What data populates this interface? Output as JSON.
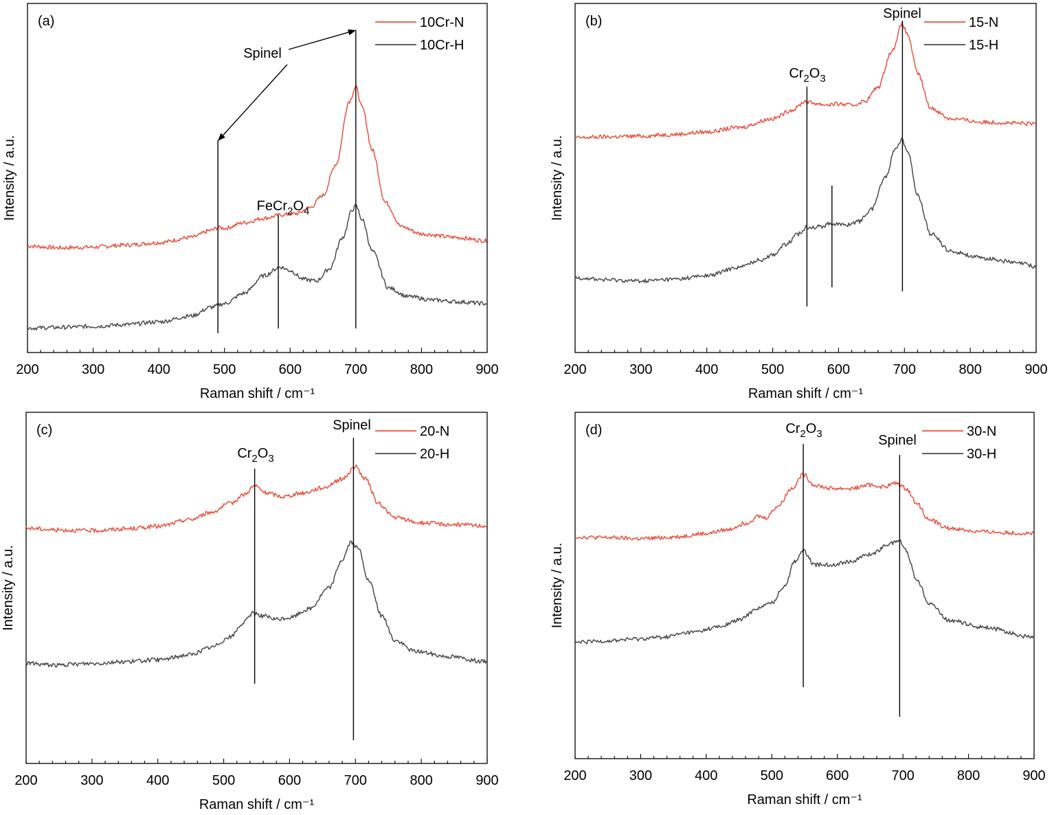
{
  "colors": {
    "N": "#e8503f",
    "H": "#4a4a4a"
  },
  "chart_data": [
    {
      "type": "line",
      "panel": "(a)",
      "xlabel": "Raman shift / cm⁻¹",
      "ylabel": "Intensity / a.u.",
      "xlim": [
        200,
        900
      ],
      "xticks": [
        "200",
        "300",
        "400",
        "500",
        "600",
        "700",
        "800",
        "900"
      ],
      "legend_position": "top-right",
      "series": [
        {
          "name": "10Cr-N",
          "color_key": "N",
          "points": [
            [
              200,
              0.305
            ],
            [
              250,
              0.3
            ],
            [
              300,
              0.302
            ],
            [
              350,
              0.308
            ],
            [
              400,
              0.315
            ],
            [
              450,
              0.33
            ],
            [
              480,
              0.35
            ],
            [
              490,
              0.358
            ],
            [
              500,
              0.356
            ],
            [
              530,
              0.372
            ],
            [
              560,
              0.385
            ],
            [
              590,
              0.395
            ],
            [
              610,
              0.398
            ],
            [
              630,
              0.415
            ],
            [
              650,
              0.45
            ],
            [
              670,
              0.54
            ],
            [
              690,
              0.72
            ],
            [
              700,
              0.76
            ],
            [
              710,
              0.7
            ],
            [
              725,
              0.58
            ],
            [
              745,
              0.43
            ],
            [
              770,
              0.36
            ],
            [
              800,
              0.34
            ],
            [
              850,
              0.33
            ],
            [
              900,
              0.32
            ]
          ]
        },
        {
          "name": "10Cr-H",
          "color_key": "H",
          "points": [
            [
              200,
              0.07
            ],
            [
              250,
              0.072
            ],
            [
              300,
              0.075
            ],
            [
              350,
              0.08
            ],
            [
              400,
              0.088
            ],
            [
              450,
              0.105
            ],
            [
              480,
              0.13
            ],
            [
              500,
              0.14
            ],
            [
              530,
              0.17
            ],
            [
              560,
              0.22
            ],
            [
              585,
              0.245
            ],
            [
              600,
              0.235
            ],
            [
              620,
              0.21
            ],
            [
              640,
              0.205
            ],
            [
              660,
              0.24
            ],
            [
              680,
              0.33
            ],
            [
              695,
              0.41
            ],
            [
              700,
              0.42
            ],
            [
              710,
              0.38
            ],
            [
              725,
              0.29
            ],
            [
              750,
              0.185
            ],
            [
              780,
              0.16
            ],
            [
              820,
              0.15
            ],
            [
              860,
              0.145
            ],
            [
              900,
              0.14
            ]
          ]
        }
      ],
      "annotations": [
        {
          "text": "Spinel",
          "x": 490
        },
        {
          "text": "Spinel",
          "x": 700
        },
        {
          "text": "FeCr",
          "sub1": "2",
          "mid": "O",
          "sub2": "4",
          "x": 582
        }
      ]
    },
    {
      "type": "line",
      "panel": "(b)",
      "xlabel": "Raman shift / cm⁻¹",
      "ylabel": "Intensity / a.u.",
      "xlim": [
        200,
        900
      ],
      "xticks": [
        "200",
        "300",
        "400",
        "500",
        "600",
        "700",
        "800",
        "900"
      ],
      "legend_position": "top-right",
      "series": [
        {
          "name": "15-N",
          "color_key": "N",
          "points": [
            [
              200,
              0.615
            ],
            [
              250,
              0.618
            ],
            [
              300,
              0.62
            ],
            [
              350,
              0.625
            ],
            [
              400,
              0.632
            ],
            [
              450,
              0.645
            ],
            [
              500,
              0.67
            ],
            [
              530,
              0.695
            ],
            [
              550,
              0.72
            ],
            [
              560,
              0.715
            ],
            [
              580,
              0.71
            ],
            [
              600,
              0.712
            ],
            [
              620,
              0.708
            ],
            [
              640,
              0.72
            ],
            [
              660,
              0.76
            ],
            [
              680,
              0.86
            ],
            [
              697,
              0.94
            ],
            [
              705,
              0.91
            ],
            [
              720,
              0.8
            ],
            [
              740,
              0.7
            ],
            [
              770,
              0.67
            ],
            [
              820,
              0.66
            ],
            [
              900,
              0.655
            ]
          ]
        },
        {
          "name": "15-H",
          "color_key": "H",
          "points": [
            [
              200,
              0.215
            ],
            [
              250,
              0.208
            ],
            [
              300,
              0.205
            ],
            [
              350,
              0.21
            ],
            [
              400,
              0.22
            ],
            [
              450,
              0.245
            ],
            [
              480,
              0.265
            ],
            [
              500,
              0.28
            ],
            [
              520,
              0.31
            ],
            [
              540,
              0.34
            ],
            [
              552,
              0.36
            ],
            [
              570,
              0.36
            ],
            [
              590,
              0.37
            ],
            [
              610,
              0.365
            ],
            [
              630,
              0.375
            ],
            [
              650,
              0.41
            ],
            [
              670,
              0.5
            ],
            [
              688,
              0.59
            ],
            [
              696,
              0.61
            ],
            [
              705,
              0.58
            ],
            [
              720,
              0.45
            ],
            [
              740,
              0.34
            ],
            [
              770,
              0.29
            ],
            [
              820,
              0.27
            ],
            [
              880,
              0.255
            ],
            [
              900,
              0.245
            ]
          ]
        }
      ],
      "annotations": [
        {
          "text": "Cr",
          "sub1": "2",
          "mid": "O",
          "sub2": "3",
          "x": 552
        },
        {
          "text": "",
          "x": 590
        },
        {
          "text": "Spinel",
          "x": 697
        }
      ]
    },
    {
      "type": "line",
      "panel": "(c)",
      "xlabel": "Raman shift / cm⁻¹",
      "ylabel": "Intensity / a.u.",
      "xlim": [
        200,
        900
      ],
      "xticks": [
        "200",
        "300",
        "400",
        "500",
        "600",
        "700",
        "800",
        "900"
      ],
      "legend_position": "top-right",
      "series": [
        {
          "name": "20-N",
          "color_key": "N",
          "points": [
            [
              200,
              0.67
            ],
            [
              250,
              0.665
            ],
            [
              300,
              0.663
            ],
            [
              350,
              0.668
            ],
            [
              400,
              0.675
            ],
            [
              450,
              0.695
            ],
            [
              480,
              0.715
            ],
            [
              510,
              0.74
            ],
            [
              530,
              0.765
            ],
            [
              547,
              0.79
            ],
            [
              565,
              0.77
            ],
            [
              590,
              0.76
            ],
            [
              620,
              0.77
            ],
            [
              650,
              0.785
            ],
            [
              680,
              0.81
            ],
            [
              700,
              0.845
            ],
            [
              715,
              0.81
            ],
            [
              735,
              0.74
            ],
            [
              760,
              0.7
            ],
            [
              800,
              0.685
            ],
            [
              850,
              0.68
            ],
            [
              900,
              0.677
            ]
          ]
        },
        {
          "name": "20-H",
          "color_key": "H",
          "points": [
            [
              200,
              0.285
            ],
            [
              250,
              0.28
            ],
            [
              300,
              0.285
            ],
            [
              350,
              0.29
            ],
            [
              400,
              0.295
            ],
            [
              450,
              0.31
            ],
            [
              480,
              0.33
            ],
            [
              510,
              0.36
            ],
            [
              530,
              0.4
            ],
            [
              545,
              0.43
            ],
            [
              560,
              0.42
            ],
            [
              580,
              0.41
            ],
            [
              600,
              0.415
            ],
            [
              630,
              0.44
            ],
            [
              660,
              0.5
            ],
            [
              680,
              0.58
            ],
            [
              693,
              0.63
            ],
            [
              705,
              0.61
            ],
            [
              720,
              0.52
            ],
            [
              740,
              0.42
            ],
            [
              760,
              0.35
            ],
            [
              790,
              0.32
            ],
            [
              840,
              0.305
            ],
            [
              900,
              0.29
            ]
          ]
        }
      ],
      "annotations": [
        {
          "text": "Cr",
          "sub1": "2",
          "mid": "O",
          "sub2": "3",
          "x": 547
        },
        {
          "text": "Spinel",
          "x": 697
        }
      ]
    },
    {
      "type": "line",
      "panel": "(d)",
      "xlabel": "Raman shift / cm⁻¹",
      "ylabel": "Intensity / a.u.",
      "xlim": [
        200,
        900
      ],
      "xticks": [
        "200",
        "300",
        "400",
        "500",
        "600",
        "700",
        "800",
        "900"
      ],
      "legend_position": "top-right",
      "series": [
        {
          "name": "30-N",
          "color_key": "N",
          "points": [
            [
              200,
              0.64
            ],
            [
              250,
              0.638
            ],
            [
              300,
              0.635
            ],
            [
              350,
              0.64
            ],
            [
              400,
              0.65
            ],
            [
              430,
              0.66
            ],
            [
              460,
              0.68
            ],
            [
              480,
              0.7
            ],
            [
              490,
              0.695
            ],
            [
              510,
              0.73
            ],
            [
              530,
              0.78
            ],
            [
              548,
              0.82
            ],
            [
              565,
              0.79
            ],
            [
              590,
              0.78
            ],
            [
              620,
              0.78
            ],
            [
              650,
              0.79
            ],
            [
              670,
              0.785
            ],
            [
              690,
              0.795
            ],
            [
              705,
              0.78
            ],
            [
              720,
              0.74
            ],
            [
              740,
              0.69
            ],
            [
              770,
              0.665
            ],
            [
              820,
              0.655
            ],
            [
              900,
              0.65
            ]
          ]
        },
        {
          "name": "30-H",
          "color_key": "H",
          "points": [
            [
              200,
              0.335
            ],
            [
              250,
              0.34
            ],
            [
              290,
              0.345
            ],
            [
              330,
              0.35
            ],
            [
              380,
              0.365
            ],
            [
              420,
              0.38
            ],
            [
              450,
              0.4
            ],
            [
              480,
              0.435
            ],
            [
              500,
              0.45
            ],
            [
              520,
              0.5
            ],
            [
              535,
              0.57
            ],
            [
              548,
              0.6
            ],
            [
              565,
              0.56
            ],
            [
              590,
              0.56
            ],
            [
              620,
              0.57
            ],
            [
              650,
              0.59
            ],
            [
              680,
              0.62
            ],
            [
              695,
              0.63
            ],
            [
              705,
              0.6
            ],
            [
              720,
              0.52
            ],
            [
              740,
              0.45
            ],
            [
              770,
              0.4
            ],
            [
              820,
              0.38
            ],
            [
              900,
              0.35
            ]
          ]
        }
      ],
      "annotations": [
        {
          "text": "Cr",
          "sub1": "2",
          "mid": "O",
          "sub2": "3",
          "x": 548
        },
        {
          "text": "Spinel",
          "x": 695
        }
      ]
    }
  ]
}
